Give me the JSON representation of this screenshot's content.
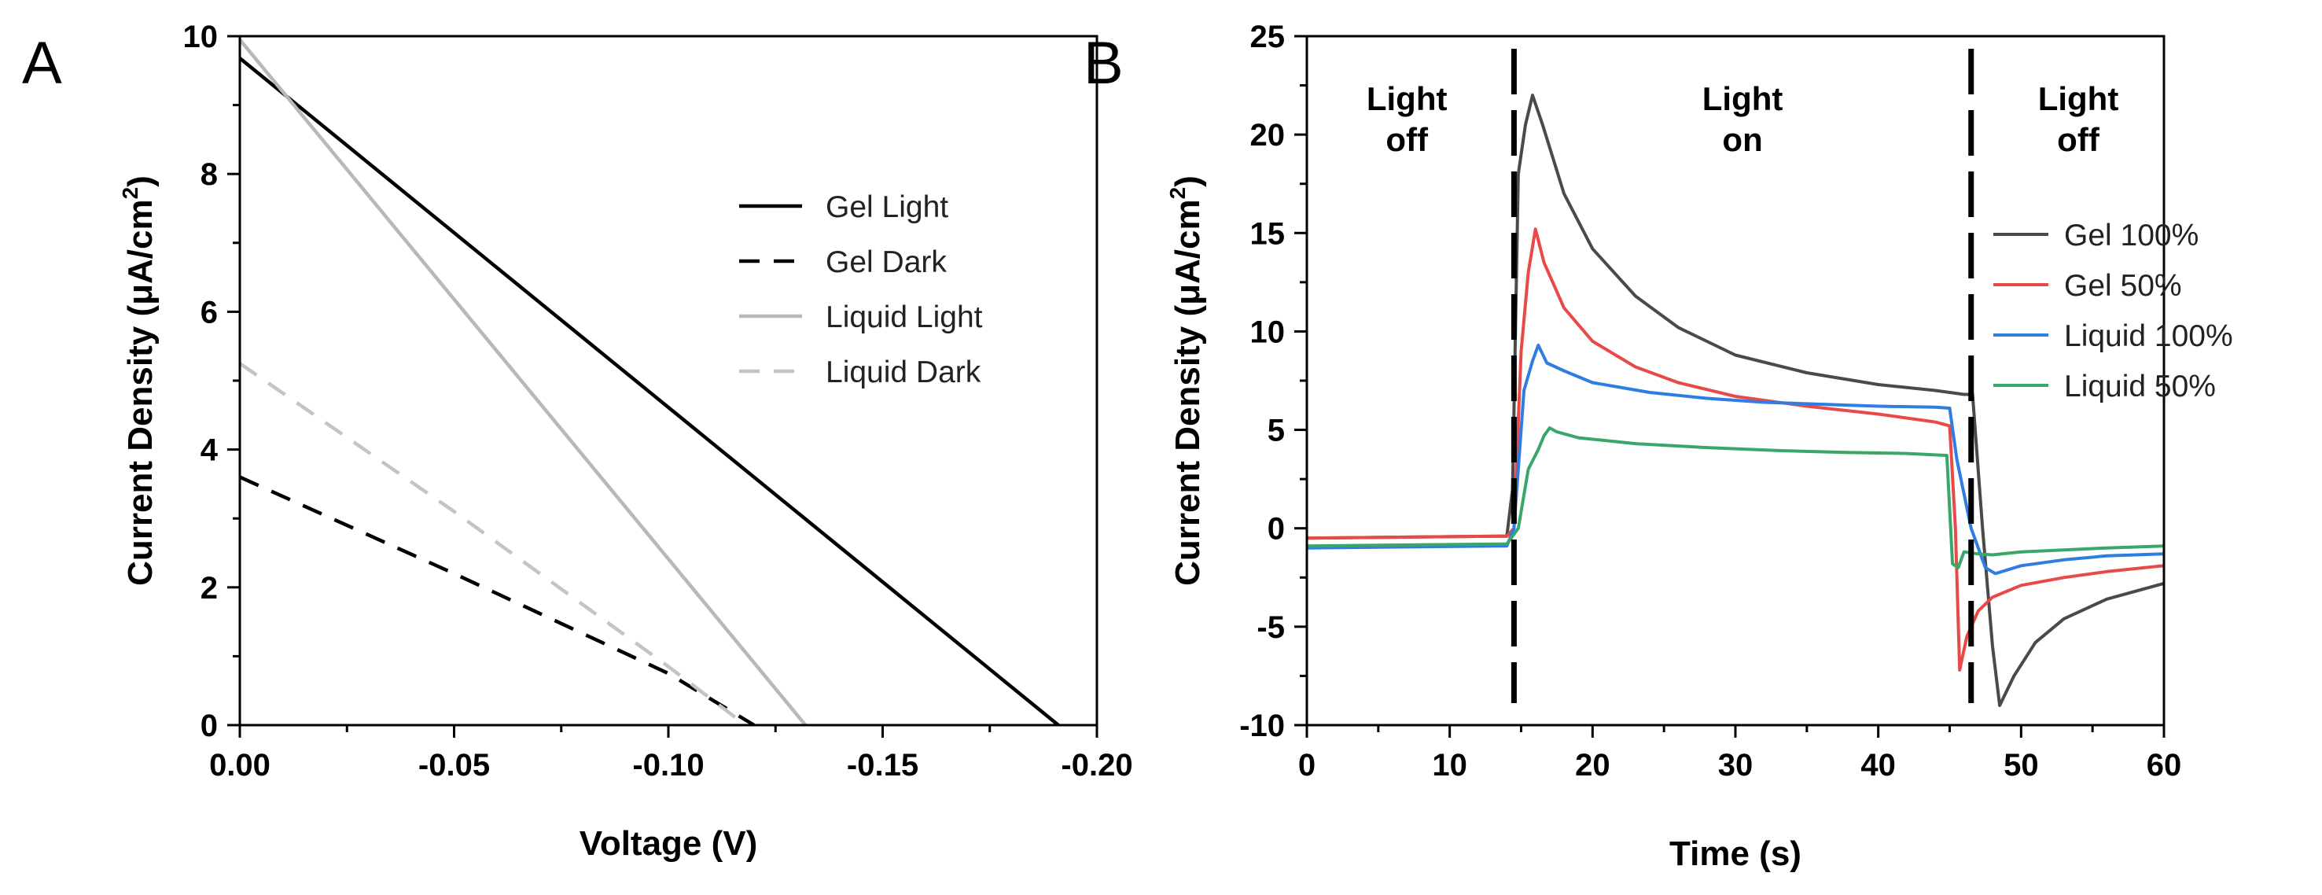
{
  "chart_data": [
    {
      "panel": "A",
      "type": "line",
      "title": "",
      "xlabel": "Voltage (V)",
      "ylabel_prefix": "Current Density (μA/cm",
      "ylabel_sup": "2",
      "ylabel_suffix": ")",
      "xlim": [
        0.0,
        -0.2
      ],
      "ylim": [
        0,
        10
      ],
      "xticks": [
        0.0,
        -0.05,
        -0.1,
        -0.15,
        -0.2
      ],
      "xtick_labels": [
        "0.00",
        "-0.05",
        "-0.10",
        "-0.15",
        "-0.20"
      ],
      "yticks": [
        0,
        2,
        4,
        6,
        8,
        10
      ],
      "ytick_labels": [
        "0",
        "2",
        "4",
        "6",
        "8",
        "10"
      ],
      "legend_position": "center-right",
      "series": [
        {
          "name": "Gel Light",
          "color": "#000000",
          "dash": "solid",
          "x": [
            0.0,
            -0.191
          ],
          "y": [
            9.68,
            0.0
          ]
        },
        {
          "name": "Gel Dark",
          "color": "#000000",
          "dash": "dashed",
          "x": [
            0.0,
            -0.05,
            -0.1,
            -0.12
          ],
          "y": [
            3.6,
            2.2,
            0.75,
            0.0
          ]
        },
        {
          "name": "Liquid Light",
          "color": "#b8b8b8",
          "dash": "solid",
          "x": [
            0.0,
            -0.132
          ],
          "y": [
            9.95,
            0.0
          ]
        },
        {
          "name": "Liquid Dark",
          "color": "#c4c4c4",
          "dash": "dashed",
          "x": [
            0.0,
            -0.05,
            -0.1,
            -0.118
          ],
          "y": [
            5.25,
            3.1,
            0.85,
            0.0
          ]
        }
      ]
    },
    {
      "panel": "B",
      "type": "line",
      "title": "",
      "xlabel": "Time (s)",
      "ylabel_prefix": "Current Density (μA/cm",
      "ylabel_sup": "2",
      "ylabel_suffix": ")",
      "xlim": [
        0,
        60
      ],
      "ylim": [
        -10,
        25
      ],
      "xticks": [
        0,
        10,
        20,
        30,
        40,
        50,
        60
      ],
      "xtick_labels": [
        "0",
        "10",
        "20",
        "30",
        "40",
        "50",
        "60"
      ],
      "yticks": [
        -10,
        -5,
        0,
        5,
        10,
        15,
        20,
        25
      ],
      "ytick_labels": [
        "-10",
        "-5",
        "0",
        "5",
        "10",
        "15",
        "20",
        "25"
      ],
      "legend_position": "right",
      "vlines": [
        14.5,
        46.5
      ],
      "regions": [
        {
          "lines": [
            "Light",
            "off"
          ],
          "x": 7
        },
        {
          "lines": [
            "Light",
            "on"
          ],
          "x": 30.5
        },
        {
          "lines": [
            "Light",
            "off"
          ],
          "x": 54
        }
      ],
      "series": [
        {
          "name": "Gel 100%",
          "color": "#4a4a4a",
          "x": [
            0,
            14,
            14.4,
            14.8,
            15.3,
            15.8,
            16.5,
            18,
            20,
            23,
            26,
            30,
            35,
            40,
            44,
            46,
            46.6,
            47.3,
            48,
            48.5,
            49.5,
            51,
            53,
            56,
            60
          ],
          "y": [
            -0.5,
            -0.4,
            2,
            18,
            20.5,
            22,
            20.5,
            17,
            14.2,
            11.8,
            10.2,
            8.8,
            7.9,
            7.3,
            7.0,
            6.8,
            6.8,
            0,
            -6,
            -9,
            -7.5,
            -5.8,
            -4.6,
            -3.6,
            -2.8
          ]
        },
        {
          "name": "Gel 50%",
          "color": "#e84a4a",
          "x": [
            0,
            14,
            14.5,
            15,
            15.5,
            16,
            16.6,
            18,
            20,
            23,
            26,
            30,
            35,
            40,
            44,
            45,
            45.4,
            45.7,
            46.2,
            47,
            48,
            50,
            53,
            56,
            60
          ],
          "y": [
            -0.5,
            -0.4,
            0,
            9,
            13,
            15.2,
            13.5,
            11.2,
            9.5,
            8.2,
            7.4,
            6.7,
            6.2,
            5.8,
            5.4,
            5.2,
            0,
            -7.2,
            -5.5,
            -4.2,
            -3.5,
            -2.9,
            -2.5,
            -2.2,
            -1.9
          ]
        },
        {
          "name": "Liquid 100%",
          "color": "#2f7de0",
          "x": [
            0,
            14,
            14.5,
            15.2,
            15.8,
            16.2,
            16.8,
            18,
            20,
            24,
            28,
            32,
            36,
            40,
            44,
            45,
            45.5,
            46.5,
            47.5,
            48.2,
            50,
            53,
            56,
            60
          ],
          "y": [
            -1.0,
            -0.9,
            0,
            7,
            8.5,
            9.3,
            8.4,
            8.0,
            7.4,
            6.9,
            6.6,
            6.4,
            6.3,
            6.2,
            6.15,
            6.1,
            3.5,
            0,
            -2.0,
            -2.3,
            -1.9,
            -1.6,
            -1.4,
            -1.3
          ]
        },
        {
          "name": "Liquid 50%",
          "color": "#3aa76a",
          "x": [
            0,
            14,
            14.8,
            15.5,
            16.2,
            16.6,
            17,
            17.5,
            19,
            23,
            28,
            33,
            38,
            42,
            44.8,
            45.2,
            45.6,
            46,
            47,
            48,
            50,
            53,
            56,
            60
          ],
          "y": [
            -0.9,
            -0.8,
            0,
            3,
            4,
            4.7,
            5.1,
            4.9,
            4.6,
            4.3,
            4.1,
            3.95,
            3.85,
            3.8,
            3.7,
            -1.8,
            -2.0,
            -1.2,
            -1.3,
            -1.35,
            -1.2,
            -1.1,
            -1.0,
            -0.9
          ]
        }
      ]
    }
  ]
}
